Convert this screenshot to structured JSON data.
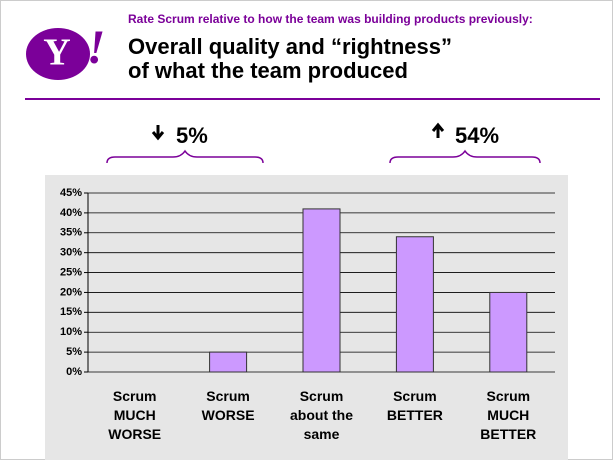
{
  "logo": {
    "letter": "Y",
    "mark": "!"
  },
  "chart_data": {
    "type": "bar",
    "subtitle": "Rate Scrum relative to how the team was building products previously:",
    "title": [
      "Overall quality and “rightness”",
      "of what the team produced"
    ],
    "annotations": [
      "5%",
      "54%"
    ],
    "categories": [
      "Scrum MUCH WORSE",
      "Scrum WORSE",
      "Scrum about the same",
      "Scrum BETTER",
      "Scrum MUCH BETTER"
    ],
    "values": [
      0,
      5,
      41,
      34,
      20
    ],
    "color": "#cc99ff",
    "ylim": [
      0,
      45
    ],
    "yticks": [
      {
        "value": 0,
        "label": "0%"
      },
      {
        "value": 5,
        "label": "5%"
      },
      {
        "value": 10,
        "label": "10%"
      },
      {
        "value": 15,
        "label": "15%"
      },
      {
        "value": 20,
        "label": "20%"
      },
      {
        "value": 25,
        "label": "25%"
      },
      {
        "value": 30,
        "label": "30%"
      },
      {
        "value": 35,
        "label": "35%"
      },
      {
        "value": 40,
        "label": "40%"
      },
      {
        "value": 45,
        "label": "45%"
      }
    ],
    "grid": true
  }
}
